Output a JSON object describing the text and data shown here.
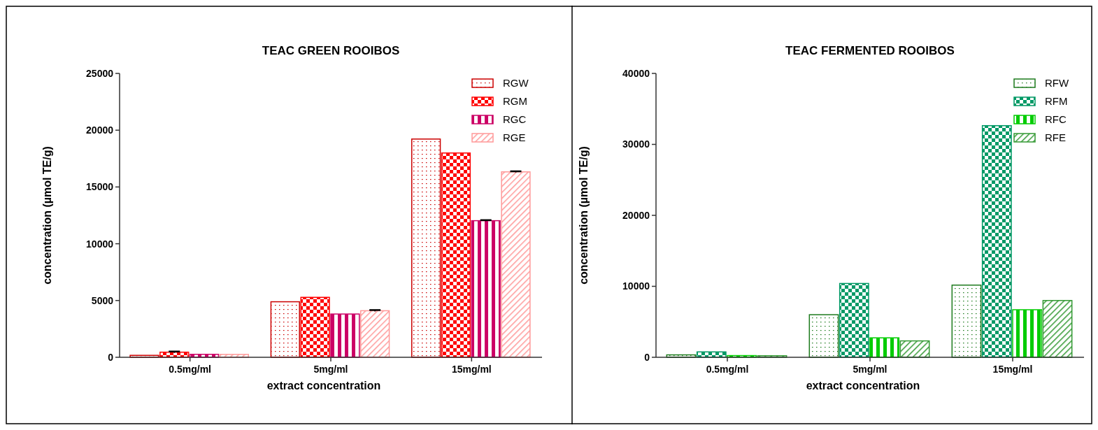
{
  "chart_data": [
    {
      "type": "bar",
      "title": "TEAC GREEN ROOIBOS",
      "xlabel": "extract concentration",
      "ylabel": "concentration (µmol TE/g)",
      "categories": [
        "0.5mg/ml",
        "5mg/ml",
        "15mg/ml"
      ],
      "ylim": [
        0,
        25000
      ],
      "yticks": [
        0,
        5000,
        10000,
        15000,
        20000,
        25000
      ],
      "legend": "top right",
      "grid": false,
      "series": [
        {
          "name": "RGW",
          "color": "#cc0000",
          "values": [
            170,
            4890,
            19220
          ]
        },
        {
          "name": "RGM",
          "color": "#ff0000",
          "values": [
            450,
            5280,
            17990
          ],
          "errors": [
            60,
            null,
            null
          ]
        },
        {
          "name": "RGC",
          "color": "#cc0066",
          "values": [
            260,
            3810,
            12030
          ],
          "errors": [
            null,
            null,
            50
          ]
        },
        {
          "name": "RGE",
          "color": "#ff9999",
          "values": [
            250,
            4100,
            16330
          ],
          "errors": [
            null,
            60,
            50
          ]
        }
      ]
    },
    {
      "type": "bar",
      "title": "TEAC FERMENTED ROOIBOS",
      "xlabel": "extract concentration",
      "ylabel": "concentration (µmol TE/g)",
      "categories": [
        "0.5mg/ml",
        "5mg/ml",
        "15mg/ml"
      ],
      "ylim": [
        0,
        40000
      ],
      "yticks": [
        0,
        10000,
        20000,
        30000,
        40000
      ],
      "legend": "top right",
      "grid": false,
      "series": [
        {
          "name": "RFW",
          "color": "#1e7b1e",
          "values": [
            340,
            6000,
            10170
          ]
        },
        {
          "name": "RFM",
          "color": "#009966",
          "values": [
            760,
            10400,
            32640
          ]
        },
        {
          "name": "RFC",
          "color": "#00cc00",
          "values": [
            240,
            2740,
            6700
          ]
        },
        {
          "name": "RFE",
          "color": "#339933",
          "values": [
            220,
            2310,
            8000
          ]
        }
      ]
    }
  ]
}
